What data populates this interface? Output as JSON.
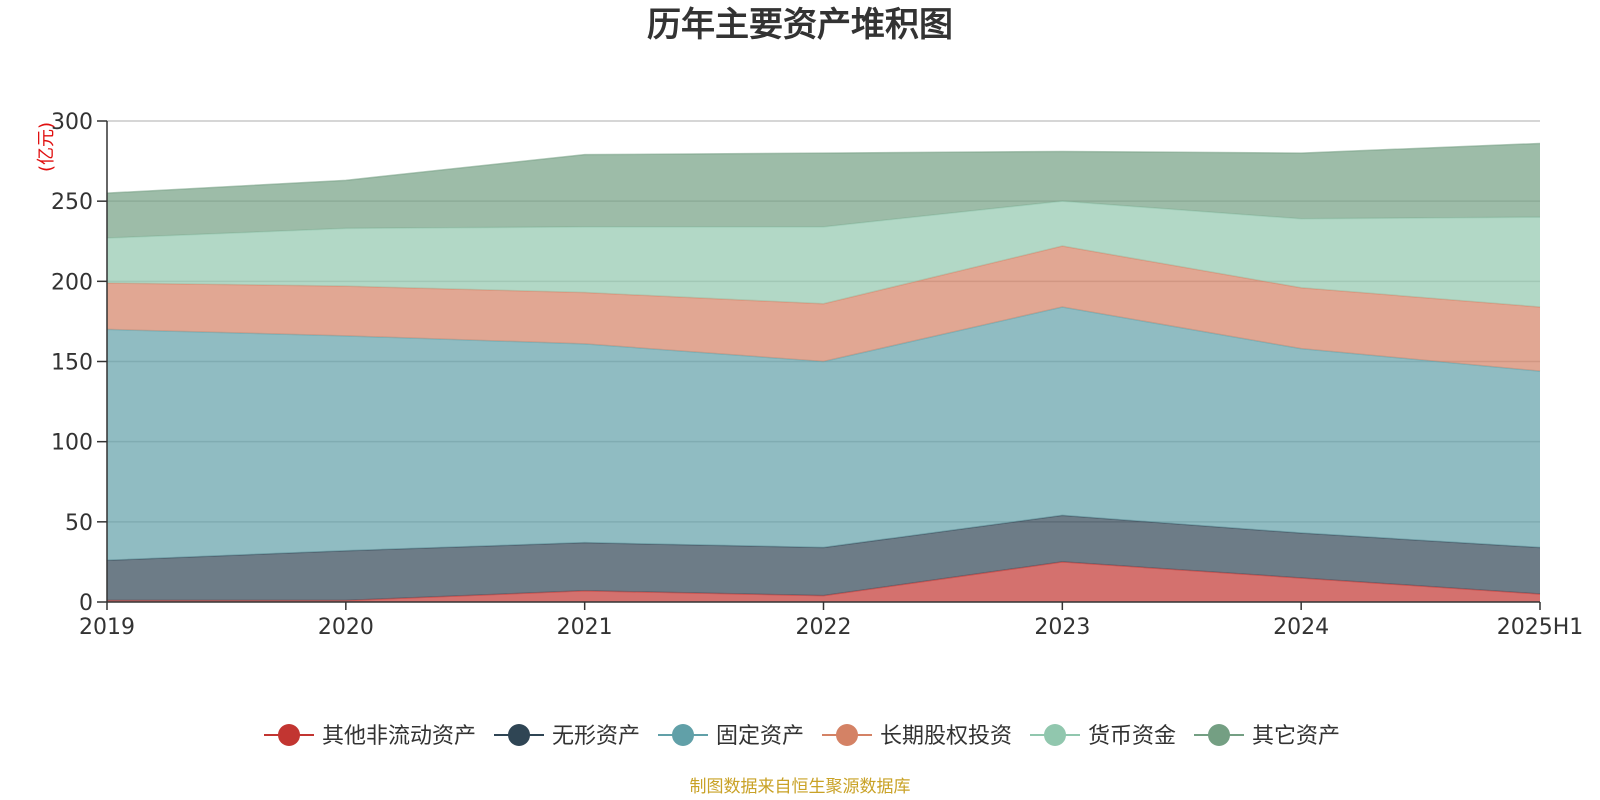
{
  "chart_data": {
    "type": "area",
    "stacked": true,
    "title": "历年主要资产堆积图",
    "unit_label": "(亿元)",
    "categories": [
      "2019",
      "2020",
      "2021",
      "2022",
      "2023",
      "2024",
      "2025H1"
    ],
    "ylim": [
      0,
      300
    ],
    "yticks": [
      "0",
      "50",
      "100",
      "150",
      "200",
      "250",
      "300"
    ],
    "grid": true,
    "legend_position": "bottom",
    "series": [
      {
        "name": "其他非流动资产",
        "color": "#c23531",
        "values": [
          1,
          1,
          7,
          4,
          25,
          15,
          5
        ]
      },
      {
        "name": "无形资产",
        "color": "#2f4554",
        "values": [
          25,
          31,
          30,
          30,
          29,
          28,
          29
        ]
      },
      {
        "name": "固定资产",
        "color": "#61a0a8",
        "values": [
          144,
          134,
          124,
          116,
          130,
          115,
          110
        ]
      },
      {
        "name": "长期股权投资",
        "color": "#d48265",
        "values": [
          29,
          31,
          32,
          36,
          38,
          38,
          40
        ]
      },
      {
        "name": "货币资金",
        "color": "#91c7ae",
        "values": [
          28,
          36,
          41,
          48,
          28,
          43,
          56
        ]
      },
      {
        "name": "其它资产",
        "color": "#749f83",
        "values": [
          28,
          30,
          45,
          46,
          31,
          41,
          46
        ]
      }
    ],
    "source": "制图数据来自恒生聚源数据库"
  }
}
